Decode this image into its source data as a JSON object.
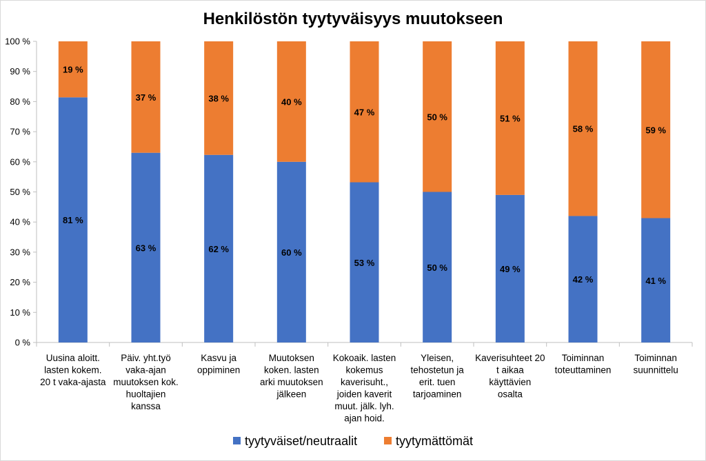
{
  "chart_data": {
    "type": "bar",
    "stacked": true,
    "title": "Henkilöstön tyytyväisyys muutokseen",
    "xlabel": "",
    "ylabel": "",
    "ylim": [
      0,
      100
    ],
    "yticks": [
      "0 %",
      "10 %",
      "20 %",
      "30 %",
      "40 %",
      "50 %",
      "60 %",
      "70 %",
      "80 %",
      "90 %",
      "100 %"
    ],
    "categories": [
      [
        "Uusina aloitt.",
        "lasten kokem.",
        "20 t vaka-ajasta"
      ],
      [
        "Päiv. yht.työ",
        "vaka-ajan",
        "muutoksen kok.",
        "huoltajien",
        "kanssa"
      ],
      [
        "Kasvu ja",
        "oppiminen"
      ],
      [
        "Muutoksen",
        "koken. lasten",
        "arki muutoksen",
        "jälkeen"
      ],
      [
        "Kokoaik. lasten",
        "kokemus",
        "kaverisuht.,",
        "joiden kaverit",
        "muut. jälk. lyh.",
        "ajan hoid."
      ],
      [
        "Yleisen,",
        "tehostetun ja",
        "erit. tuen",
        "tarjoaminen"
      ],
      [
        "Kaverisuhteet 20",
        "t aikaa",
        "käyttävien",
        "osalta"
      ],
      [
        "Toiminnan",
        "toteuttaminen"
      ],
      [
        "Toiminnan",
        "suunnittelu"
      ]
    ],
    "series": [
      {
        "name": "tyytyväiset/neutraalit",
        "color": "#4472C4",
        "values": [
          81.4,
          63,
          62.3,
          60,
          53.2,
          50,
          49,
          42,
          41.3
        ],
        "labels": [
          "81 %",
          "63 %",
          "62 %",
          "60 %",
          "53 %",
          "50 %",
          "49 %",
          "42 %",
          "41 %"
        ]
      },
      {
        "name": "tyytymättömät",
        "color": "#ED7D31",
        "values": [
          18.6,
          37,
          37.7,
          40,
          46.8,
          50,
          51,
          58,
          58.7
        ],
        "labels": [
          "19 %",
          "37 %",
          "38 %",
          "40 %",
          "47 %",
          "50 %",
          "51 %",
          "58 %",
          "59 %"
        ]
      }
    ],
    "legend_position": "bottom",
    "grid": false
  }
}
